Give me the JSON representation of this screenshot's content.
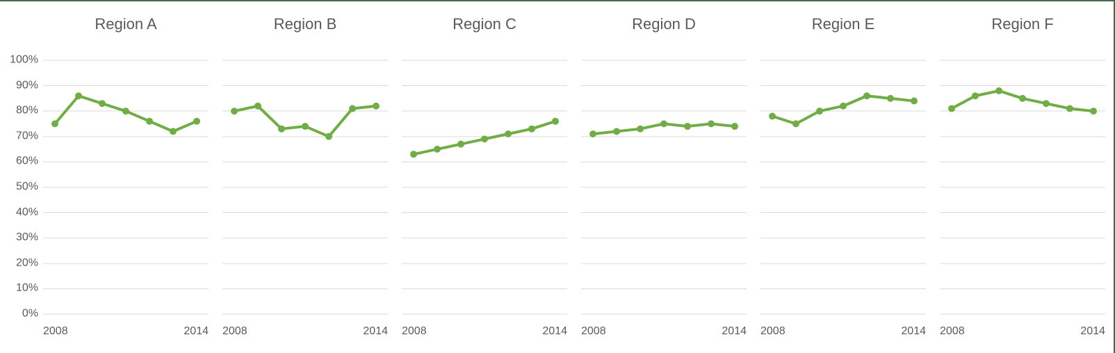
{
  "page": {
    "border_color": "#3f6a49",
    "background_color": "#ffffff",
    "text_color": "#595959",
    "gridline_color": "#d9d9d9"
  },
  "chart_data": {
    "type": "line",
    "layout": "small-multiples",
    "x": [
      2008,
      2009,
      2010,
      2011,
      2012,
      2013,
      2014
    ],
    "x_tick_labels": {
      "left": "2008",
      "right": "2014"
    },
    "y_axis": {
      "min": 0,
      "max": 100,
      "step": 10,
      "unit": "%",
      "ticks": [
        "100%",
        "90%",
        "80%",
        "70%",
        "60%",
        "50%",
        "40%",
        "30%",
        "20%",
        "10%",
        "0%"
      ],
      "grid": true
    },
    "series_color": "#70AD47",
    "marker_radius": 5,
    "line_width": 4,
    "panels": [
      {
        "title": "Region A",
        "values": [
          75,
          86,
          83,
          80,
          76,
          72,
          76
        ]
      },
      {
        "title": "Region B",
        "values": [
          80,
          82,
          73,
          74,
          70,
          81,
          82
        ]
      },
      {
        "title": "Region C",
        "values": [
          63,
          65,
          67,
          69,
          71,
          73,
          76
        ]
      },
      {
        "title": "Region D",
        "values": [
          71,
          72,
          73,
          75,
          74,
          75,
          74
        ]
      },
      {
        "title": "Region E",
        "values": [
          78,
          75,
          80,
          82,
          86,
          85,
          84
        ]
      },
      {
        "title": "Region F",
        "values": [
          81,
          86,
          88,
          85,
          83,
          81,
          80
        ]
      }
    ]
  }
}
